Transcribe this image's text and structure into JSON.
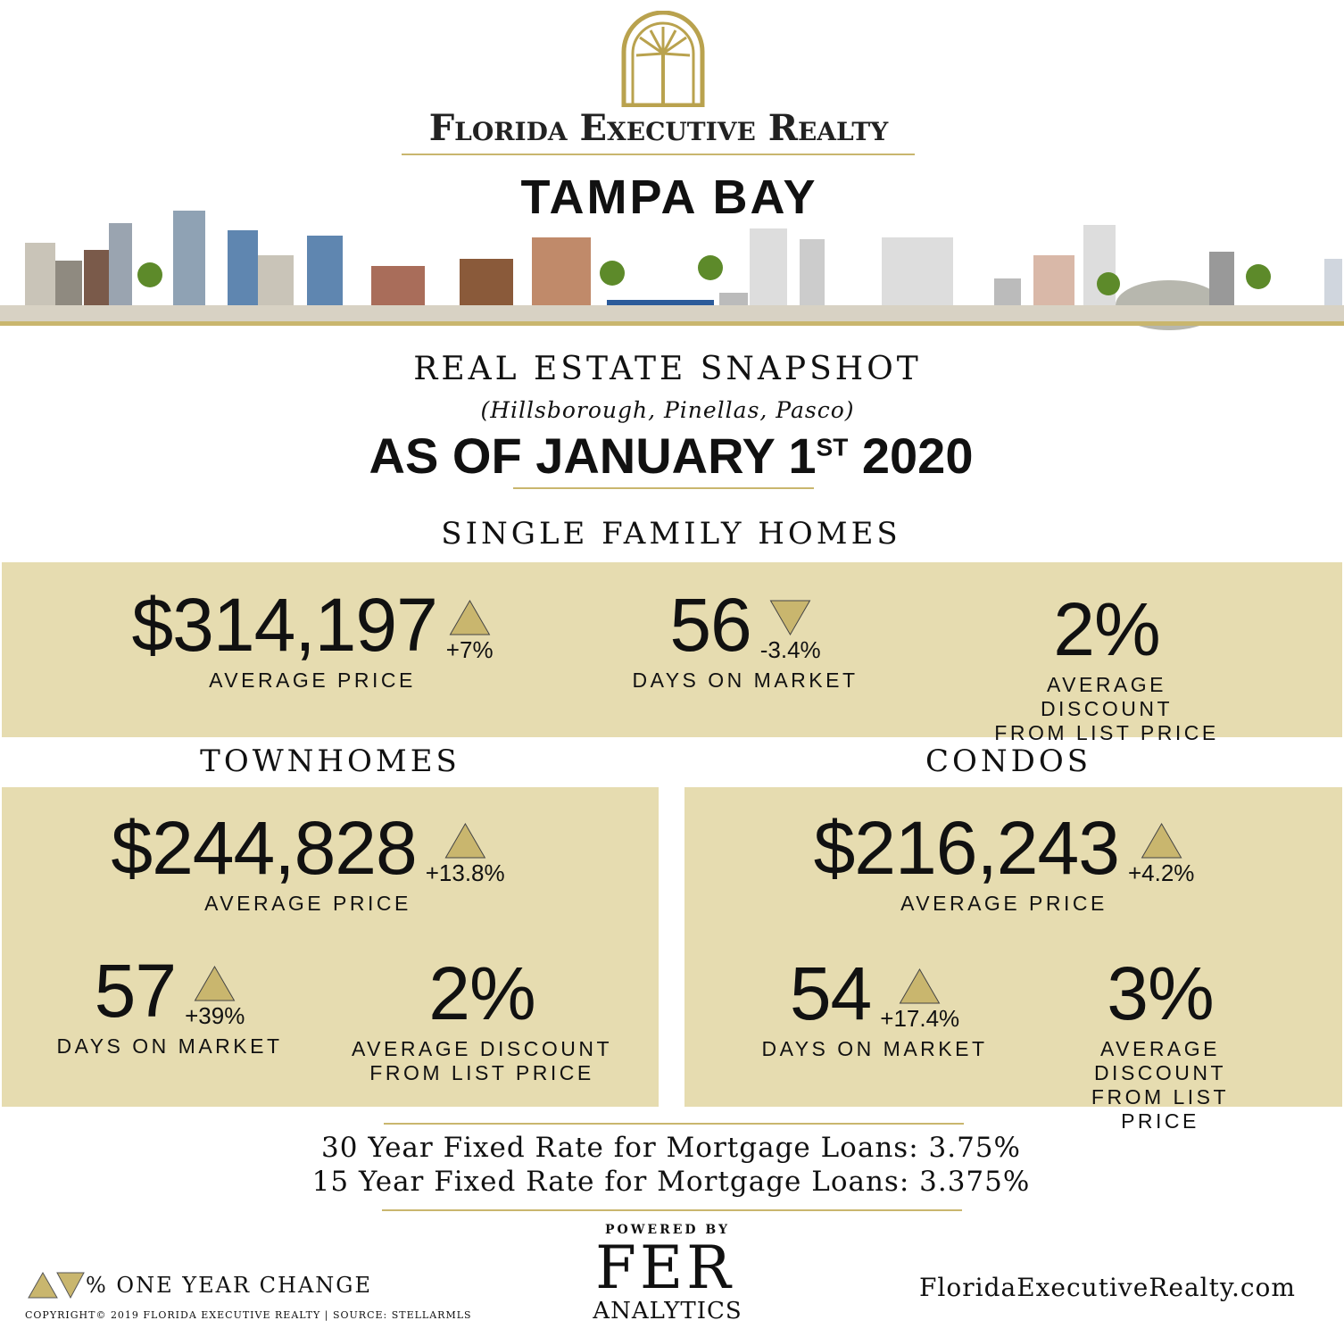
{
  "header": {
    "brand": "Florida Executive Realty",
    "region": "TAMPA BAY"
  },
  "snapshot": {
    "title": "REAL ESTATE SNAPSHOT",
    "counties": "(Hillsborough, Pinellas, Pasco)",
    "date_main": "AS OF JANUARY 1",
    "date_ordinal": "ST",
    "date_year": "2020"
  },
  "sections": [
    {
      "title": "SINGLE FAMILY HOMES",
      "stats": [
        {
          "value": "$314,197",
          "change": "+7%",
          "direction": "up",
          "label": [
            "AVERAGE PRICE"
          ]
        },
        {
          "value": "56",
          "change": "-3.4%",
          "direction": "down",
          "label": [
            "DAYS ON MARKET"
          ]
        },
        {
          "value": "2%",
          "label": [
            "AVERAGE DISCOUNT",
            "FROM LIST PRICE"
          ]
        }
      ]
    },
    {
      "title": "TOWNHOMES",
      "stats": [
        {
          "value": "$244,828",
          "change": "+13.8%",
          "direction": "up",
          "label": [
            "AVERAGE PRICE"
          ]
        },
        {
          "value": "57",
          "change": "+39%",
          "direction": "up",
          "label": [
            "DAYS ON MARKET"
          ]
        },
        {
          "value": "2%",
          "label": [
            "AVERAGE DISCOUNT",
            "FROM LIST PRICE"
          ]
        }
      ]
    },
    {
      "title": "CONDOS",
      "stats": [
        {
          "value": "$216,243",
          "change": "+4.2%",
          "direction": "up",
          "label": [
            "AVERAGE PRICE"
          ]
        },
        {
          "value": "54",
          "change": "+17.4%",
          "direction": "up",
          "label": [
            "DAYS ON MARKET"
          ]
        },
        {
          "value": "3%",
          "label": [
            "AVERAGE DISCOUNT",
            "FROM LIST PRICE"
          ]
        }
      ]
    }
  ],
  "mortgage": [
    "30 Year Fixed Rate for Mortgage Loans: 3.75%",
    "15 Year Fixed Rate for Mortgage Loans: 3.375%"
  ],
  "footer": {
    "legend": "% ONE YEAR CHANGE",
    "copyright": "COPYRIGHT© 2019 FLORIDA EXECUTIVE REALTY | SOURCE: STELLARMLS",
    "powered_by": "POWERED BY",
    "fer": "FER",
    "analytics": "ANALYTICS",
    "website": "FloridaExecutiveRealty.com"
  }
}
